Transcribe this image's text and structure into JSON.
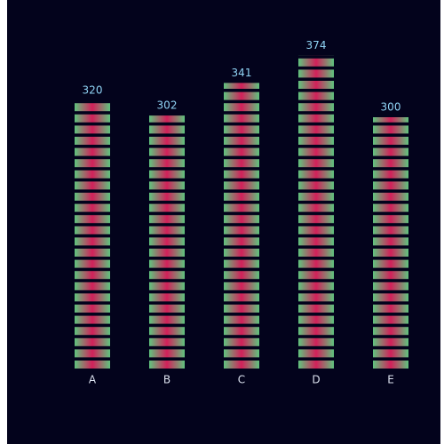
{
  "chart_data": {
    "type": "pictorial-bar",
    "categories": [
      "A",
      "B",
      "C",
      "D",
      "E"
    ],
    "values": [
      320,
      302,
      341,
      374,
      300
    ],
    "color": "#d2205a",
    "edge_color": "#5fc47e",
    "ylim": [
      0,
      440
    ]
  }
}
